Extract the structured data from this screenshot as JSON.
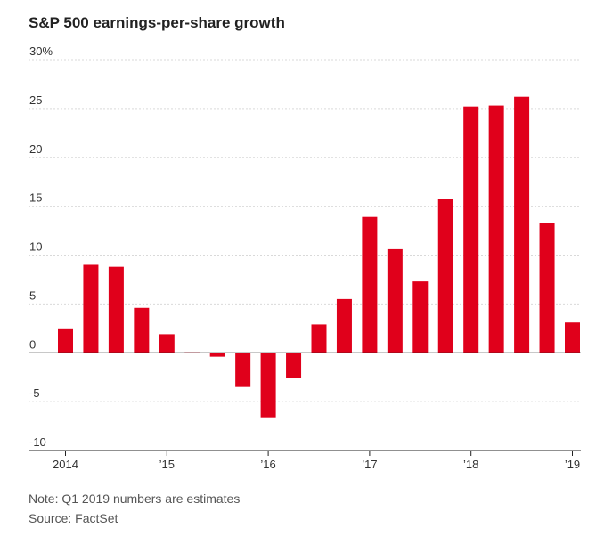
{
  "chart_data": {
    "type": "bar",
    "title": "S&P 500 earnings-per-share growth",
    "xlabel": "",
    "ylabel": "",
    "ylim": [
      -10,
      30
    ],
    "y_ticks": [
      {
        "value": 30,
        "label": "30%"
      },
      {
        "value": 25,
        "label": "25"
      },
      {
        "value": 20,
        "label": "20"
      },
      {
        "value": 15,
        "label": "15"
      },
      {
        "value": 10,
        "label": "10"
      },
      {
        "value": 5,
        "label": "5"
      },
      {
        "value": 0,
        "label": "0"
      },
      {
        "value": -5,
        "label": "-5"
      },
      {
        "value": -10,
        "label": "-10"
      }
    ],
    "x_ticks": [
      {
        "index": 0,
        "label": "2014"
      },
      {
        "index": 4,
        "label": "’15"
      },
      {
        "index": 8,
        "label": "’16"
      },
      {
        "index": 12,
        "label": "’17"
      },
      {
        "index": 16,
        "label": "’18"
      },
      {
        "index": 20,
        "label": "’19"
      }
    ],
    "values": [
      2.5,
      9.0,
      8.8,
      4.6,
      1.9,
      -0.1,
      -0.4,
      -3.5,
      -6.6,
      -2.6,
      2.9,
      5.5,
      13.9,
      10.6,
      7.3,
      15.7,
      25.2,
      25.3,
      26.2,
      13.3,
      3.1
    ],
    "bar_color": "#e0001b",
    "grid": true
  },
  "notes": {
    "note": "Note: Q1 2019 numbers are estimates",
    "source": "Source: FactSet"
  }
}
